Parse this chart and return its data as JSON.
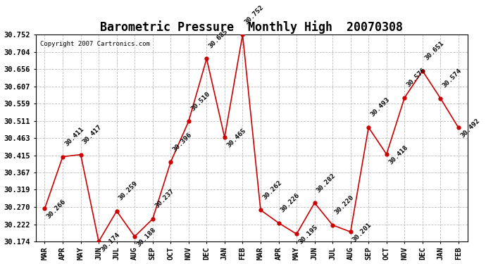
{
  "title": "Barometric Pressure  Monthly High  20070308",
  "copyright": "Copyright 2007 Cartronics.com",
  "months": [
    "MAR",
    "APR",
    "MAY",
    "JUN",
    "JUL",
    "AUG",
    "SEP",
    "OCT",
    "NOV",
    "DEC",
    "JAN",
    "FEB",
    "MAR",
    "APR",
    "MAY",
    "JUN",
    "JUL",
    "AUG",
    "SEP",
    "OCT",
    "NOV",
    "DEC",
    "JAN",
    "FEB"
  ],
  "values": [
    30.266,
    30.411,
    30.417,
    30.174,
    30.259,
    30.188,
    30.237,
    30.396,
    30.51,
    30.685,
    30.465,
    30.752,
    30.262,
    30.226,
    30.195,
    30.282,
    30.22,
    30.201,
    30.493,
    30.418,
    30.576,
    30.651,
    30.574,
    30.492
  ],
  "ylim_min": 30.174,
  "ylim_max": 30.752,
  "yticks": [
    30.174,
    30.222,
    30.27,
    30.319,
    30.367,
    30.415,
    30.463,
    30.511,
    30.559,
    30.607,
    30.656,
    30.704,
    30.752
  ],
  "line_color": "#cc0000",
  "marker_color": "#cc0000",
  "bg_color": "#ffffff",
  "grid_color": "#bbbbbb",
  "title_fontsize": 12,
  "tick_fontsize": 7.5,
  "label_fontsize": 6.8
}
